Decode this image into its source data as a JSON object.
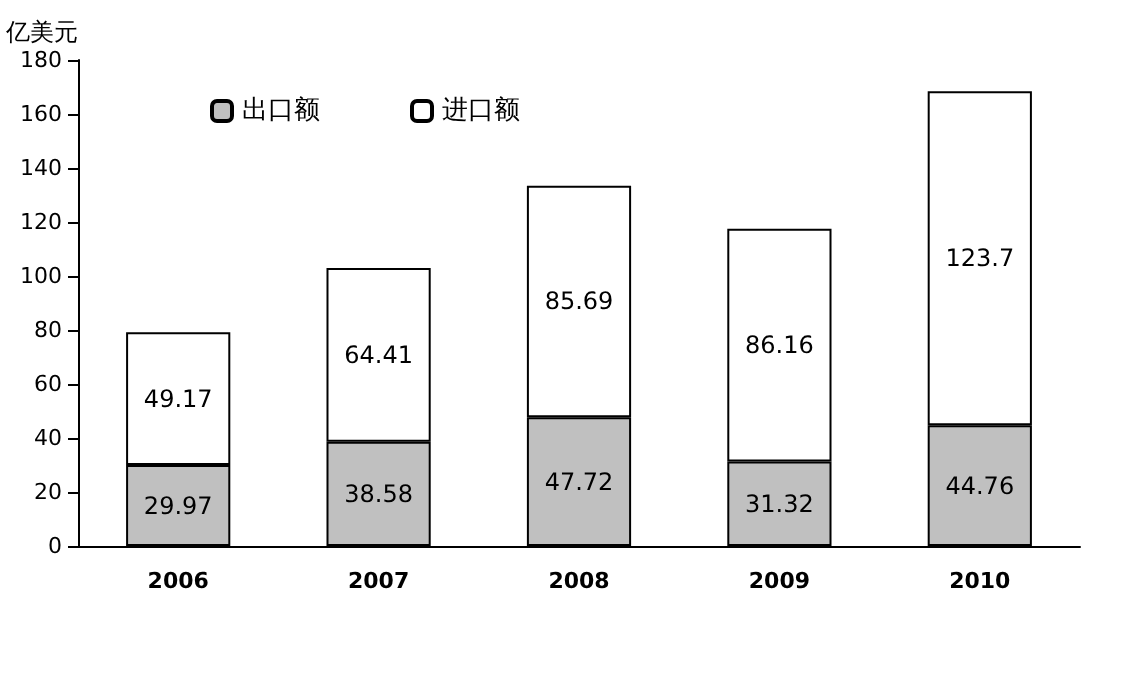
{
  "chart_data": {
    "type": "bar",
    "ylabel": "亿美元",
    "categories": [
      "2006",
      "2007",
      "2008",
      "2009",
      "2010"
    ],
    "stacked": true,
    "series": [
      {
        "name": "出口额",
        "color": "#c0c0c0",
        "values": [
          29.97,
          38.58,
          47.72,
          31.32,
          44.76
        ]
      },
      {
        "name": "进口额",
        "color": "#ffffff",
        "values": [
          49.17,
          64.41,
          85.69,
          86.16,
          123.7
        ]
      }
    ],
    "ylim": [
      0,
      180
    ],
    "yticks": [
      0,
      20,
      40,
      60,
      80,
      100,
      120,
      140,
      160,
      180
    ],
    "data_labels": true,
    "legend": "top left"
  }
}
